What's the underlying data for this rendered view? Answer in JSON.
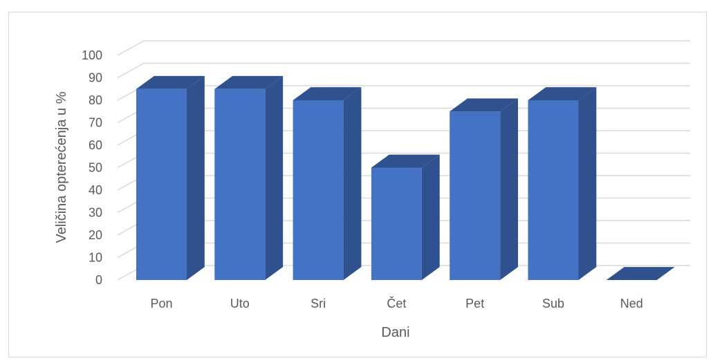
{
  "chart_data": {
    "type": "bar",
    "categories": [
      "Pon",
      "Uto",
      "Sri",
      "Čet",
      "Pet",
      "Sub",
      "Ned"
    ],
    "values": [
      85,
      85,
      80,
      50,
      75,
      80,
      0
    ],
    "title": "",
    "xlabel": "Dani",
    "ylabel": "Veličina opterećenja u %",
    "ylim": [
      0,
      100
    ],
    "yticks": [
      0,
      10,
      20,
      30,
      40,
      50,
      60,
      70,
      80,
      90,
      100
    ],
    "grid": true,
    "legend": "none",
    "style": "3d-column",
    "colors": {
      "front": "#4472c4",
      "side": "#2f528f",
      "top": "#2f528f",
      "grid": "#d9d9d9"
    }
  }
}
